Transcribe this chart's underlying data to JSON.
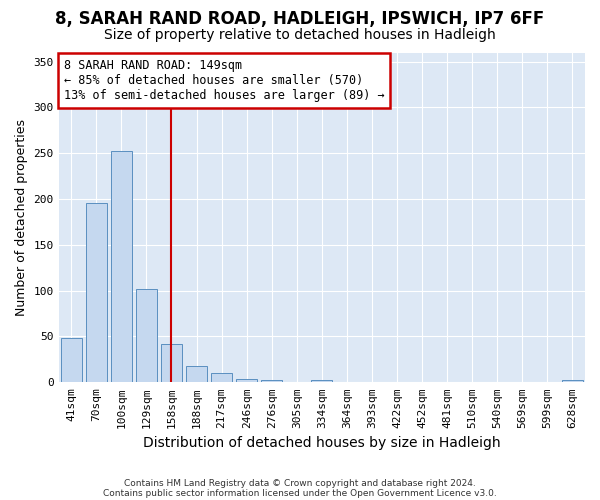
{
  "title1": "8, SARAH RAND ROAD, HADLEIGH, IPSWICH, IP7 6FF",
  "title2": "Size of property relative to detached houses in Hadleigh",
  "xlabel": "Distribution of detached houses by size in Hadleigh",
  "ylabel": "Number of detached properties",
  "bin_labels": [
    "41sqm",
    "70sqm",
    "100sqm",
    "129sqm",
    "158sqm",
    "188sqm",
    "217sqm",
    "246sqm",
    "276sqm",
    "305sqm",
    "334sqm",
    "364sqm",
    "393sqm",
    "422sqm",
    "452sqm",
    "481sqm",
    "510sqm",
    "540sqm",
    "569sqm",
    "599sqm",
    "628sqm"
  ],
  "bar_values": [
    48,
    196,
    252,
    102,
    42,
    18,
    10,
    4,
    2,
    0,
    2,
    0,
    0,
    0,
    0,
    0,
    0,
    0,
    0,
    0,
    2
  ],
  "bar_color": "#c5d8ef",
  "bar_edge_color": "#5a8fc0",
  "red_line_x": 4,
  "annotation_line1": "8 SARAH RAND ROAD: 149sqm",
  "annotation_line2": "← 85% of detached houses are smaller (570)",
  "annotation_line3": "13% of semi-detached houses are larger (89) →",
  "footer1": "Contains HM Land Registry data © Crown copyright and database right 2024.",
  "footer2": "Contains public sector information licensed under the Open Government Licence v3.0.",
  "ylim": [
    0,
    360
  ],
  "yticks": [
    0,
    50,
    100,
    150,
    200,
    250,
    300,
    350
  ],
  "plot_bg_color": "#dde8f5",
  "grid_color": "#ffffff",
  "title_fontsize": 12,
  "subtitle_fontsize": 10,
  "tick_fontsize": 8,
  "ylabel_fontsize": 9,
  "xlabel_fontsize": 10
}
